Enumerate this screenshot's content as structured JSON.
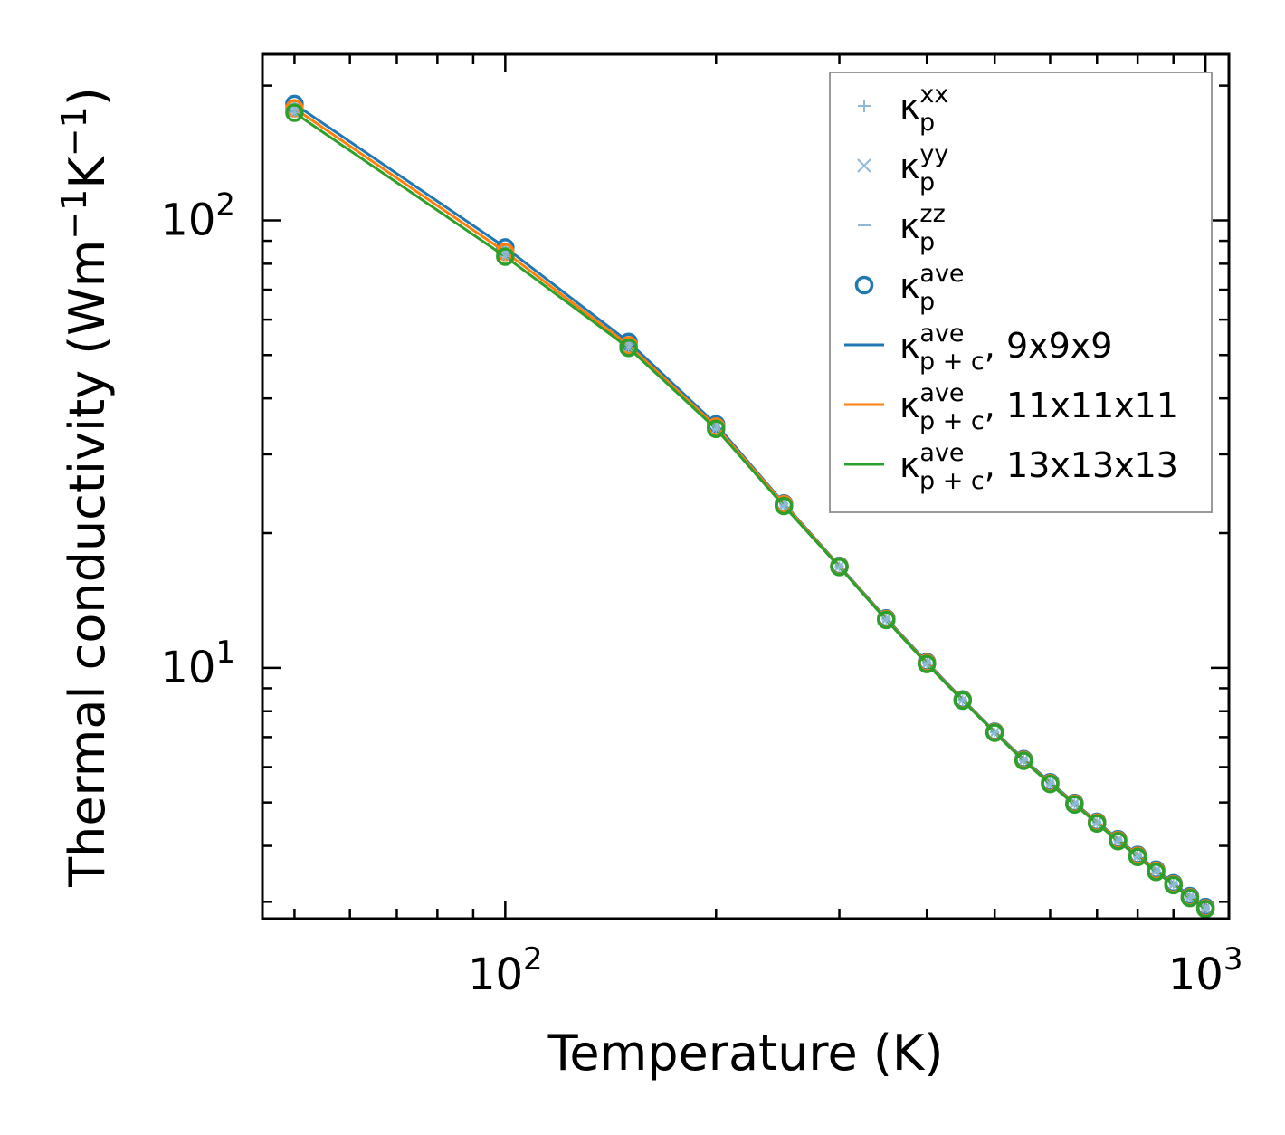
{
  "chart_data": {
    "type": "line",
    "xscale": "log",
    "yscale": "log",
    "xlim": [
      45,
      1080
    ],
    "ylim": [
      2.75,
      235
    ],
    "xlabel": "Temperature (K)",
    "ylabel_main": "Thermal conductivity (Wm",
    "ylabel_sup1": "−1",
    "ylabel_mid": "K",
    "ylabel_sup2": "−1",
    "ylabel_end": ")",
    "xticks": [
      {
        "value": 100,
        "base": "10",
        "exp": "2"
      },
      {
        "value": 1000,
        "base": "10",
        "exp": "3"
      }
    ],
    "yticks": [
      {
        "value": 10,
        "base": "10",
        "exp": "1"
      },
      {
        "value": 100,
        "base": "10",
        "exp": "2"
      }
    ],
    "x": [
      50,
      100,
      150,
      200,
      250,
      300,
      350,
      400,
      450,
      500,
      550,
      600,
      650,
      700,
      750,
      800,
      850,
      900,
      950,
      1000
    ],
    "series": [
      {
        "name": "κp+c ave, 9x9x9",
        "color": "#1f77b4",
        "values": [
          182,
          87,
          53.5,
          35.0,
          23.3,
          16.9,
          12.9,
          10.3,
          8.5,
          7.2,
          6.25,
          5.55,
          4.99,
          4.53,
          4.14,
          3.82,
          3.54,
          3.3,
          3.09,
          2.92
        ]
      },
      {
        "name": "κp+c ave, 11x11x11",
        "color": "#ff7f0e",
        "values": [
          178,
          85,
          52.6,
          34.6,
          23.2,
          16.85,
          12.85,
          10.25,
          8.47,
          7.18,
          6.22,
          5.52,
          4.97,
          4.51,
          4.12,
          3.8,
          3.52,
          3.28,
          3.07,
          2.9
        ]
      },
      {
        "name": "κp+c ave, 13x13x13",
        "color": "#2ca02c",
        "values": [
          174,
          83,
          51.9,
          34.2,
          23.0,
          16.8,
          12.8,
          10.2,
          8.45,
          7.16,
          6.2,
          5.5,
          4.95,
          4.49,
          4.1,
          3.78,
          3.5,
          3.27,
          3.06,
          2.89
        ]
      }
    ],
    "legend": {
      "placement": "top-right",
      "entries": [
        {
          "marker": "plus",
          "color": "#8fb8d9",
          "label": "κ",
          "sub": "p",
          "sup": "xx",
          "extra": ""
        },
        {
          "marker": "x",
          "color": "#8fb8d9",
          "label": "κ",
          "sub": "p",
          "sup": "yy",
          "extra": ""
        },
        {
          "marker": "dash",
          "color": "#8fb8d9",
          "label": "κ",
          "sub": "p",
          "sup": "zz",
          "extra": ""
        },
        {
          "marker": "circle",
          "color": "#1f77b4",
          "label": "κ",
          "sub": "p",
          "sup": "ave",
          "extra": ""
        },
        {
          "marker": "line",
          "color": "#1f77b4",
          "label": "κ",
          "sub": "p + c",
          "sup": "ave",
          "extra": ", 9x9x9"
        },
        {
          "marker": "line",
          "color": "#ff7f0e",
          "label": "κ",
          "sub": "p + c",
          "sup": "ave",
          "extra": ", 11x11x11"
        },
        {
          "marker": "line",
          "color": "#2ca02c",
          "label": "κ",
          "sub": "p + c",
          "sup": "ave",
          "extra": ", 13x13x13"
        }
      ]
    }
  }
}
